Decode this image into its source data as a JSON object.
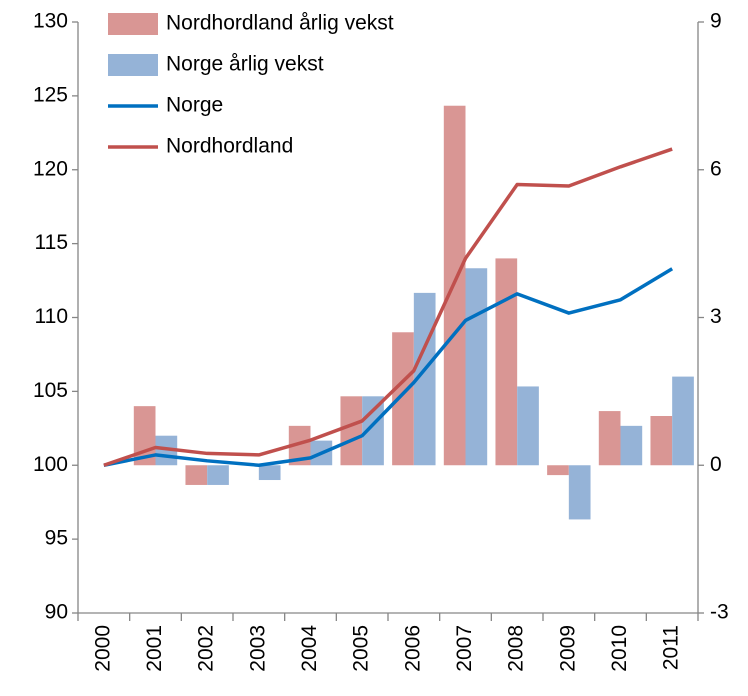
{
  "chart_data": {
    "type": "bar-line",
    "categories": [
      "2000",
      "2001",
      "2002",
      "2003",
      "2004",
      "2005",
      "2006",
      "2007",
      "2008",
      "2009",
      "2010",
      "2011"
    ],
    "series": [
      {
        "name": "Nordhordland årlig vekst",
        "type": "bar",
        "axis": "y2",
        "color": "#d99694",
        "values": [
          0,
          1.2,
          -0.4,
          0,
          0.8,
          1.4,
          2.7,
          7.3,
          4.2,
          -0.2,
          1.1,
          1.0
        ]
      },
      {
        "name": "Norge årlig vekst",
        "type": "bar",
        "axis": "y2",
        "color": "#95b3d7",
        "values": [
          0,
          0.6,
          -0.4,
          -0.3,
          0.5,
          1.4,
          3.5,
          4.0,
          1.6,
          -1.1,
          0.8,
          1.8
        ]
      },
      {
        "name": "Norge",
        "type": "line",
        "color": "#0070c0",
        "values": [
          100,
          100.7,
          100.3,
          100.0,
          100.5,
          102.0,
          105.6,
          109.8,
          111.6,
          110.3,
          111.2,
          113.3
        ]
      },
      {
        "name": "Nordhordland",
        "type": "line",
        "color": "#c0504d",
        "values": [
          100,
          101.2,
          100.8,
          100.7,
          101.7,
          103.0,
          106.4,
          114.0,
          119.0,
          118.9,
          120.2,
          121.4
        ]
      }
    ],
    "ylim": [
      90,
      130
    ],
    "yticks": [
      90,
      95,
      100,
      105,
      110,
      115,
      120,
      125,
      130
    ],
    "y2lim": [
      -3,
      9
    ],
    "y2ticks": [
      -3,
      0,
      3,
      6,
      9
    ],
    "grid": false,
    "legend": "upper-left"
  }
}
